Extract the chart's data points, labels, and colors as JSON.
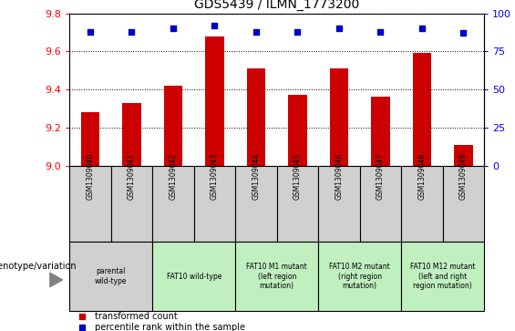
{
  "title": "GDS5439 / ILMN_1773200",
  "samples": [
    "GSM1309040",
    "GSM1309041",
    "GSM1309042",
    "GSM1309043",
    "GSM1309044",
    "GSM1309045",
    "GSM1309046",
    "GSM1309047",
    "GSM1309048",
    "GSM1309049"
  ],
  "red_values": [
    9.28,
    9.33,
    9.42,
    9.68,
    9.51,
    9.37,
    9.51,
    9.36,
    9.59,
    9.11
  ],
  "blue_values": [
    88,
    88,
    90,
    92,
    88,
    88,
    90,
    88,
    90,
    87
  ],
  "ylim_left": [
    9.0,
    9.8
  ],
  "ylim_right": [
    0,
    100
  ],
  "yticks_left": [
    9.0,
    9.2,
    9.4,
    9.6,
    9.8
  ],
  "yticks_right": [
    0,
    25,
    50,
    75,
    100
  ],
  "bar_color": "#cc0000",
  "dot_color": "#0000cc",
  "bar_bottom": 9.0,
  "genotype_groups": [
    {
      "label": "parental\nwild-type",
      "span": [
        0,
        2
      ],
      "color": "#d0d0d0"
    },
    {
      "label": "FAT10 wild-type",
      "span": [
        2,
        4
      ],
      "color": "#c0f0c0"
    },
    {
      "label": "FAT10 M1 mutant\n(left region\nmutation)",
      "span": [
        4,
        6
      ],
      "color": "#c0f0c0"
    },
    {
      "label": "FAT10 M2 mutant\n(right region\nmutation)",
      "span": [
        6,
        8
      ],
      "color": "#c0f0c0"
    },
    {
      "label": "FAT10 M12 mutant\n(left and right\nregion mutation)",
      "span": [
        8,
        10
      ],
      "color": "#c0f0c0"
    }
  ],
  "sample_cell_color": "#d0d0d0",
  "legend_red": "transformed count",
  "legend_blue": "percentile rank within the sample",
  "genotype_label": "genotype/variation",
  "bar_width": 0.45
}
